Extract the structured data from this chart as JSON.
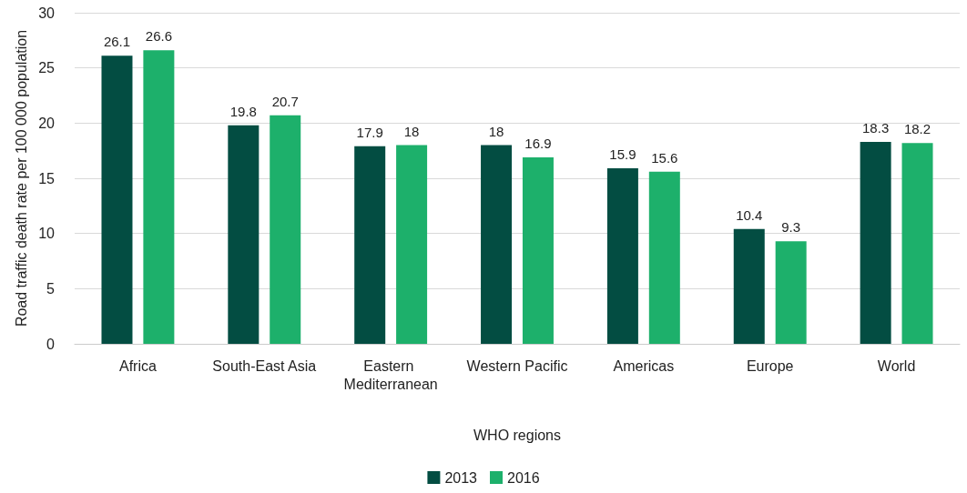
{
  "chart_data": {
    "type": "bar",
    "xlabel": "WHO regions",
    "ylabel": "Road traffic death rate per 100 000 population",
    "categories": [
      "Africa",
      "South-East Asia",
      "Eastern Mediterranean",
      "Western Pacific",
      "Americas",
      "Europe",
      "World"
    ],
    "series": [
      {
        "name": "2013",
        "color": "#034d42",
        "values": [
          26.1,
          19.8,
          17.9,
          18,
          15.9,
          10.4,
          18.3
        ]
      },
      {
        "name": "2016",
        "color": "#1db06b",
        "values": [
          26.6,
          20.7,
          18,
          16.9,
          15.6,
          9.3,
          18.2
        ]
      }
    ],
    "ylim": [
      0,
      30
    ],
    "yticks": [
      0,
      5,
      10,
      15,
      20,
      25,
      30
    ],
    "grid": "y",
    "legend": "bottom",
    "data_labels": true
  }
}
